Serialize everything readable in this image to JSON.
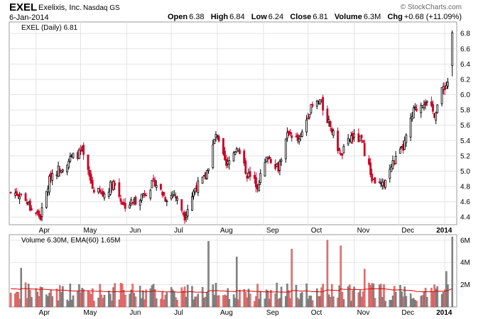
{
  "header": {
    "symbol": "EXEL",
    "company": "Exelixis, Inc.",
    "exchange": "Nasdaq GS",
    "brand": "© StockCharts.com",
    "date": "6-Jan-2014",
    "open_label": "Open",
    "open": "6.38",
    "high_label": "High",
    "high": "6.84",
    "low_label": "Low",
    "low": "6.24",
    "close_label": "Close",
    "close": "6.81",
    "volume_label": "Volume",
    "volume": "6.3M",
    "chg_label": "Chg",
    "chg": "+0.68 (+11.09%)"
  },
  "colors": {
    "up": "#000000",
    "down": "#cc0022",
    "vol_up": "#888888",
    "vol_down": "#ee7777",
    "ema": "#dd0000",
    "grid": "#e3e3e3"
  },
  "chart_data": [
    {
      "type": "candlestick",
      "legend": "EXEL (Daily) 6.81",
      "ylim": [
        4.3,
        6.95
      ],
      "yticks": [
        "4.4",
        "4.6",
        "4.8",
        "5.0",
        "5.2",
        "5.4",
        "5.6",
        "5.8",
        "6.0",
        "6.2",
        "6.4",
        "6.6",
        "6.8"
      ],
      "xticks": [
        "Apr",
        "May",
        "Jun",
        "Jul",
        "Aug",
        "Sep",
        "Oct",
        "Nov",
        "Dec",
        "2014"
      ],
      "grid": true,
      "close_path": [
        [
          "2013-03-15",
          4.72
        ],
        [
          "2013-03-22",
          4.7
        ],
        [
          "2013-03-28",
          4.52
        ],
        [
          "2013-04-04",
          4.4
        ],
        [
          "2013-04-11",
          4.96
        ],
        [
          "2013-04-18",
          5.05
        ],
        [
          "2013-04-25",
          5.18
        ],
        [
          "2013-05-02",
          5.25
        ],
        [
          "2013-05-09",
          4.78
        ],
        [
          "2013-05-16",
          4.68
        ],
        [
          "2013-05-23",
          4.86
        ],
        [
          "2013-05-30",
          4.55
        ],
        [
          "2013-06-06",
          4.6
        ],
        [
          "2013-06-13",
          4.72
        ],
        [
          "2013-06-20",
          4.86
        ],
        [
          "2013-06-27",
          4.65
        ],
        [
          "2013-07-03",
          4.7
        ],
        [
          "2013-07-10",
          4.42
        ],
        [
          "2013-07-17",
          4.78
        ],
        [
          "2013-07-24",
          4.92
        ],
        [
          "2013-07-31",
          5.48
        ],
        [
          "2013-08-07",
          5.05
        ],
        [
          "2013-08-14",
          5.32
        ],
        [
          "2013-08-21",
          4.96
        ],
        [
          "2013-08-28",
          4.82
        ],
        [
          "2013-09-04",
          5.2
        ],
        [
          "2013-09-11",
          5.05
        ],
        [
          "2013-09-18",
          5.52
        ],
        [
          "2013-09-25",
          5.38
        ],
        [
          "2013-10-02",
          5.8
        ],
        [
          "2013-10-09",
          5.92
        ],
        [
          "2013-10-16",
          5.58
        ],
        [
          "2013-10-23",
          5.2
        ],
        [
          "2013-10-30",
          5.45
        ],
        [
          "2013-11-06",
          5.4
        ],
        [
          "2013-11-13",
          4.9
        ],
        [
          "2013-11-20",
          4.8
        ],
        [
          "2013-11-27",
          5.1
        ],
        [
          "2013-12-04",
          5.3
        ],
        [
          "2013-12-11",
          5.78
        ],
        [
          "2013-12-18",
          5.92
        ],
        [
          "2013-12-25",
          5.75
        ],
        [
          "2013-12-31",
          6.1
        ],
        [
          "2014-01-03",
          6.13
        ],
        [
          "2014-01-06",
          6.81
        ]
      ]
    },
    {
      "type": "bar",
      "legend": "Volume 6.30M, EMA(60) 1.65M",
      "ylim": [
        0,
        6500000
      ],
      "yticks": [
        "2M",
        "4M",
        "6M"
      ],
      "xticks": [
        "Apr",
        "May",
        "Jun",
        "Jul",
        "Aug",
        "Sep",
        "Oct",
        "Nov",
        "Dec",
        "2014"
      ],
      "ema_level": 1650000,
      "peaks": [
        [
          "2013-03-22",
          3500000
        ],
        [
          "2013-07-26",
          5900000
        ],
        [
          "2013-08-14",
          4500000
        ],
        [
          "2013-09-20",
          5200000
        ],
        [
          "2013-10-14",
          6000000
        ],
        [
          "2013-10-23",
          5500000
        ],
        [
          "2013-11-08",
          3400000
        ],
        [
          "2014-01-02",
          3200000
        ],
        [
          "2014-01-06",
          6300000
        ]
      ]
    }
  ]
}
